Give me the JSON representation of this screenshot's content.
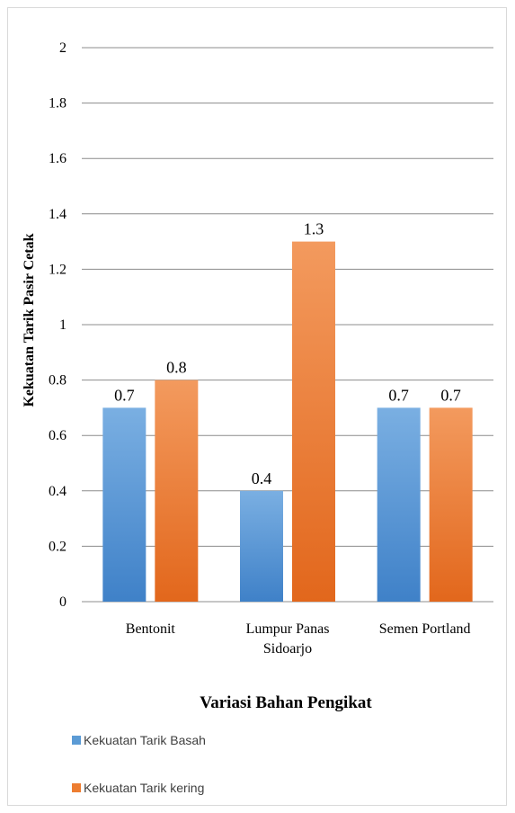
{
  "chart_data": {
    "type": "bar",
    "categories": [
      [
        "Bentonit"
      ],
      [
        "Lumpur Panas",
        "Sidoarjo"
      ],
      [
        "Semen Portland"
      ]
    ],
    "series": [
      {
        "name": "Kekuatan Tarik Basah",
        "values": [
          0.7,
          0.4,
          0.7
        ],
        "color_top": "#7aafe2",
        "color_bottom": "#3f81c8"
      },
      {
        "name": "Kekuatan Tarik kering",
        "values": [
          0.8,
          1.3,
          0.7
        ],
        "color_top": "#f39a5e",
        "color_bottom": "#e2671c"
      }
    ],
    "data_labels": [
      [
        "0.7",
        "0.4",
        "0.7"
      ],
      [
        "0.8",
        "1.3",
        "0.7"
      ]
    ],
    "xlabel": "Variasi Bahan Pengikat",
    "ylabel": "Kekuatan Tarik Pasir Cetak",
    "ylim": [
      0,
      2
    ],
    "yticks": [
      0,
      0.2,
      0.4,
      0.6,
      0.8,
      1,
      1.2,
      1.4,
      1.6,
      1.8,
      2
    ],
    "grid": true,
    "legend": "bottom-left"
  }
}
